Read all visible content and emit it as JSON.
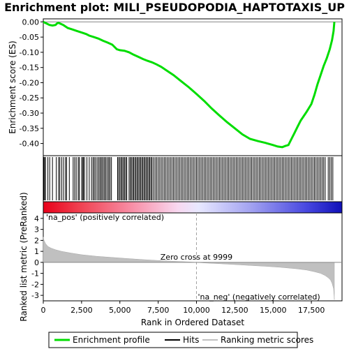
{
  "chart_data": {
    "type": "line",
    "title": "Enrichment plot: MILI_PSEUDOPODIA_HAPTOTAXIS_UP",
    "xlabel": "Rank in Ordered Dataset",
    "xlim": [
      0,
      19500
    ],
    "x_ticks": [
      0,
      2500,
      5000,
      7500,
      10000,
      12500,
      15000,
      17500
    ],
    "x_tick_labels": [
      "0",
      "2,500",
      "5,000",
      "7,500",
      "10,000",
      "12,500",
      "15,000",
      "17,500"
    ],
    "es_panel": {
      "ylabel": "Enrichment score (ES)",
      "ylim": [
        -0.44,
        0.01
      ],
      "y_ticks": [
        0.0,
        -0.05,
        -0.1,
        -0.15,
        -0.2,
        -0.25,
        -0.3,
        -0.35,
        -0.4
      ],
      "y_tick_labels": [
        "0.00",
        "-0.05",
        "-0.10",
        "-0.15",
        "-0.20",
        "-0.25",
        "-0.30",
        "-0.35",
        "-0.40"
      ],
      "series": [
        {
          "name": "Enrichment profile",
          "color": "#00dd00",
          "x": [
            0,
            200,
            400,
            600,
            800,
            900,
            1000,
            1300,
            1600,
            1900,
            2200,
            2500,
            2800,
            3000,
            3300,
            3600,
            3900,
            4200,
            4500,
            4800,
            5000,
            5300,
            5600,
            5900,
            6200,
            6500,
            6800,
            7100,
            7400,
            7700,
            8000,
            8500,
            9000,
            9500,
            10000,
            10500,
            11000,
            11500,
            12000,
            12500,
            13000,
            13500,
            14000,
            14500,
            15000,
            15300,
            15600,
            15800,
            16000,
            16200,
            16400,
            16600,
            16800,
            17000,
            17200,
            17500,
            17700,
            17900,
            18100,
            18300,
            18500,
            18700,
            18850,
            18950,
            19000
          ],
          "y": [
            0.0,
            -0.005,
            -0.01,
            -0.012,
            -0.01,
            -0.005,
            -0.003,
            -0.01,
            -0.02,
            -0.025,
            -0.03,
            -0.035,
            -0.04,
            -0.045,
            -0.05,
            -0.055,
            -0.062,
            -0.068,
            -0.075,
            -0.09,
            -0.093,
            -0.095,
            -0.1,
            -0.108,
            -0.115,
            -0.122,
            -0.128,
            -0.133,
            -0.14,
            -0.148,
            -0.158,
            -0.175,
            -0.195,
            -0.215,
            -0.237,
            -0.26,
            -0.285,
            -0.308,
            -0.33,
            -0.35,
            -0.37,
            -0.385,
            -0.392,
            -0.398,
            -0.405,
            -0.41,
            -0.412,
            -0.408,
            -0.405,
            -0.385,
            -0.365,
            -0.345,
            -0.325,
            -0.31,
            -0.295,
            -0.27,
            -0.24,
            -0.205,
            -0.175,
            -0.145,
            -0.12,
            -0.09,
            -0.06,
            -0.03,
            0.0
          ]
        }
      ]
    },
    "hits_panel": {
      "legend_name": "Hits",
      "hit_ranks": [
        40,
        80,
        150,
        300,
        420,
        600,
        850,
        1000,
        1080,
        1200,
        1320,
        1450,
        1520,
        1700,
        1950,
        2050,
        2150,
        2280,
        2350,
        2500,
        2580,
        2620,
        2700,
        2850,
        3000,
        3150,
        3250,
        3330,
        3420,
        3520,
        3620,
        3700,
        3780,
        3850,
        3950,
        4020,
        4100,
        4200,
        4280,
        4360,
        4450,
        4850,
        4920,
        5000,
        5080,
        5150,
        5230,
        5300,
        5380,
        5450,
        5600,
        5680,
        5750,
        5830,
        5900,
        5980,
        6050,
        6130,
        6200,
        6280,
        6350,
        6430,
        6500,
        6580,
        6650,
        6730,
        6800,
        6880,
        6950,
        7030,
        7100,
        7200,
        7300,
        7400,
        7500,
        7600,
        7700,
        7800,
        7900,
        8000,
        8100,
        8200,
        8300,
        8400,
        8500,
        8600,
        8700,
        8800,
        8900,
        9000,
        9100,
        9200,
        9300,
        9400,
        9500,
        9600,
        9700,
        9800,
        9900,
        10000,
        10100,
        10200,
        10300,
        10400,
        10500,
        10600,
        10700,
        10800,
        10900,
        11000,
        11100,
        11200,
        11300,
        11400,
        11500,
        11600,
        11700,
        11800,
        11900,
        12000,
        12100,
        12200,
        12300,
        12400,
        12500,
        12600,
        12700,
        12800,
        12900,
        13000,
        13100,
        13200,
        13300,
        13400,
        13500,
        13600,
        13700,
        13800,
        13900,
        14000,
        14100,
        14200,
        14300,
        14400,
        14500,
        14600,
        14700,
        14800,
        14900,
        15000,
        15100,
        15200,
        15300,
        15400,
        15500,
        15600,
        15700,
        15800,
        15900,
        16000,
        16100,
        16200,
        16300,
        16400,
        16500,
        16600,
        16700,
        16800,
        16900,
        17000,
        17100,
        17200,
        17300,
        17400,
        17500,
        17600,
        17700,
        17800,
        17900,
        18000,
        18100,
        18200,
        18300,
        18400,
        18600,
        18700,
        18800,
        18900
      ]
    },
    "ranking_panel": {
      "ylabel": "Ranked list metric (PreRanked)",
      "ylim": [
        -3.5,
        4.5
      ],
      "y_ticks": [
        4,
        3,
        2,
        1,
        0,
        -1,
        -2,
        -3
      ],
      "y_tick_labels": [
        "4",
        "3",
        "2",
        "1",
        "0",
        "-1",
        "-2",
        "-3"
      ],
      "legend_name": "Ranking metric scores",
      "metric_x": [
        0,
        50,
        150,
        300,
        500,
        800,
        1200,
        1800,
        2500,
        3500,
        4500,
        5500,
        6500,
        7500,
        8500,
        9500,
        9999,
        10500,
        11500,
        12500,
        13500,
        14500,
        15500,
        16500,
        17200,
        17700,
        18100,
        18400,
        18600,
        18750,
        18850,
        18950,
        19000
      ],
      "metric_y": [
        2.3,
        2.0,
        1.7,
        1.45,
        1.3,
        1.15,
        1.0,
        0.85,
        0.7,
        0.55,
        0.45,
        0.35,
        0.25,
        0.17,
        0.1,
        0.04,
        0.0,
        -0.05,
        -0.12,
        -0.2,
        -0.28,
        -0.36,
        -0.45,
        -0.58,
        -0.7,
        -0.85,
        -1.0,
        -1.2,
        -1.4,
        -1.6,
        -1.9,
        -2.4,
        -3.4
      ],
      "zero_cross_label": "Zero cross at 9999",
      "zero_cross_rank": 9999,
      "pos_label": "'na_pos' (positively correlated)",
      "neg_label": "'na_neg' (negatively correlated)",
      "pos_color": "#cc0000",
      "neg_color": "#0000cc"
    },
    "legend": {
      "placement": "bottom",
      "items": [
        {
          "name": "Enrichment profile",
          "color": "#00dd00"
        },
        {
          "name": "Hits",
          "color": "#000000"
        },
        {
          "name": "Ranking metric scores",
          "color": "#c0c0c0"
        }
      ]
    }
  }
}
